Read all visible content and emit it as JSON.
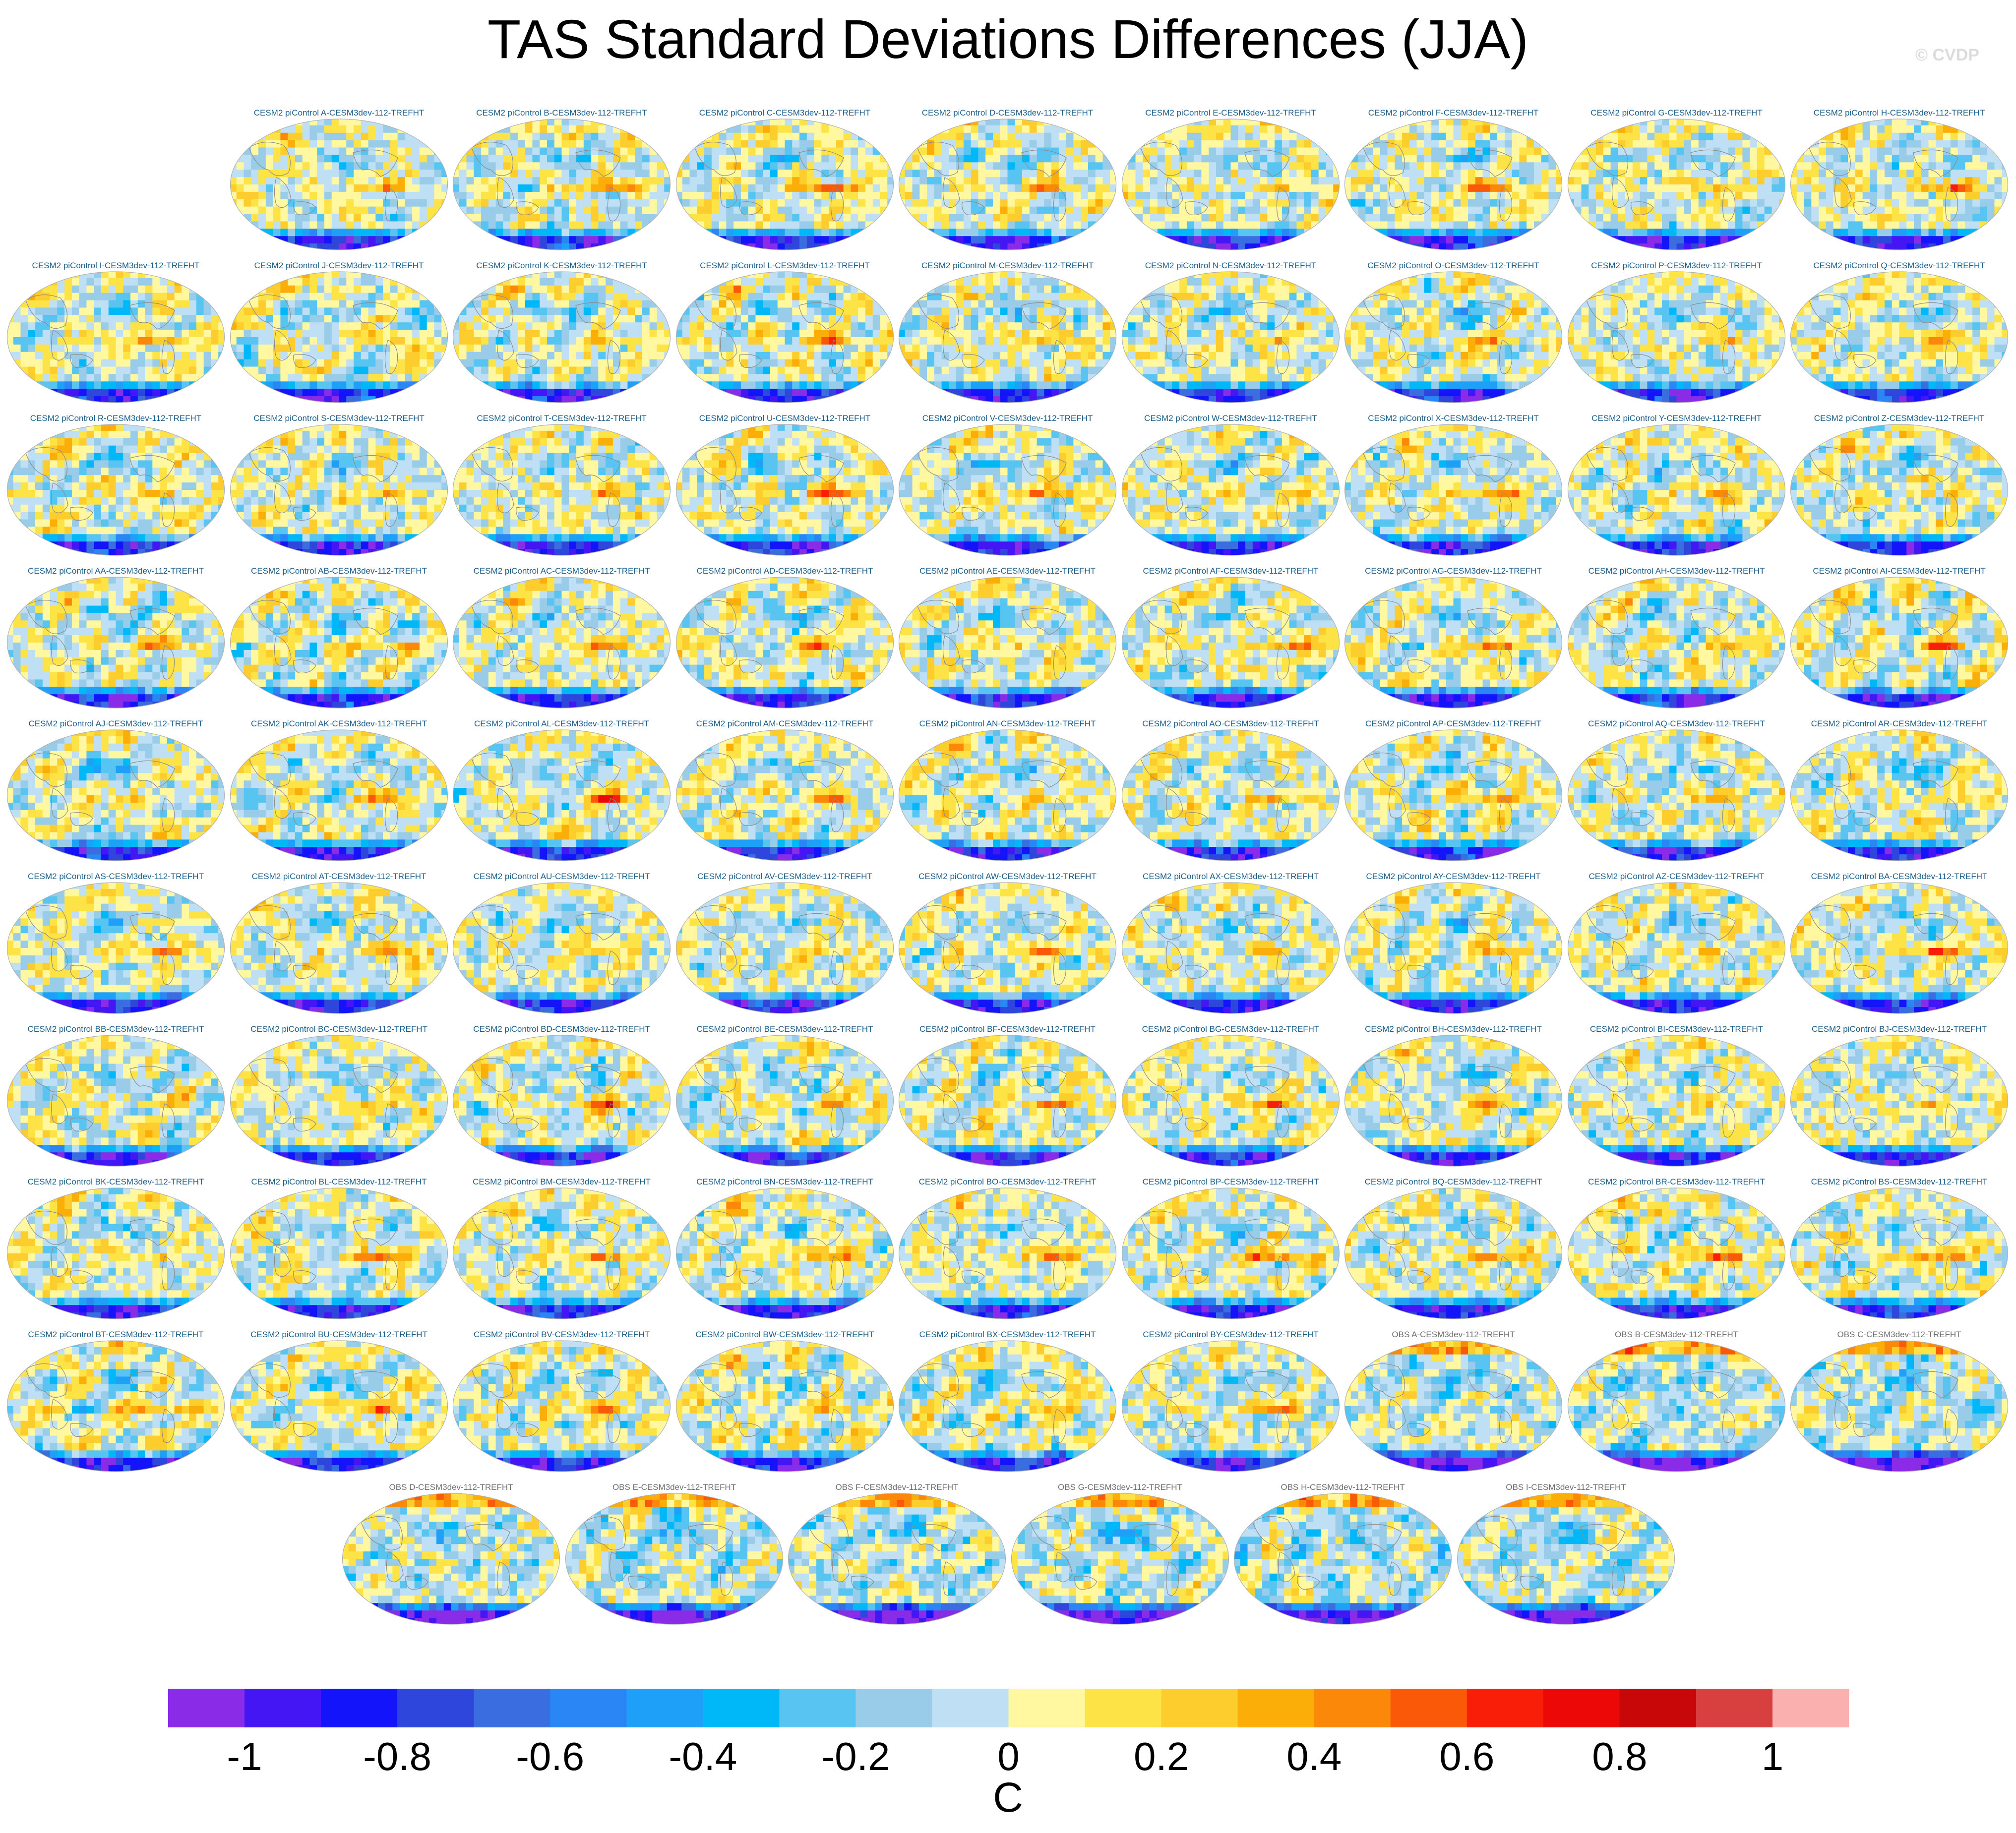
{
  "title": "TAS Standard Deviations Differences (JJA)",
  "copyright": "© CVDP",
  "units": "C",
  "colors": {
    "panel_title_model": "#1b5e8a",
    "panel_title_obs": "#6e6e6e",
    "land_outline": "#8c8c8c",
    "map_border": "#b0b0b0"
  },
  "chart_data": {
    "type": "heatmap",
    "projection": "Robinson, centered on the Pacific",
    "variable": "TAS",
    "season": "JJA",
    "units": "C",
    "panels": [
      {
        "title": "CESM2 piControl A-CESM3dev-112-TREFHT",
        "source": "model"
      },
      {
        "title": "CESM2 piControl B-CESM3dev-112-TREFHT",
        "source": "model"
      },
      {
        "title": "CESM2 piControl C-CESM3dev-112-TREFHT",
        "source": "model"
      },
      {
        "title": "CESM2 piControl D-CESM3dev-112-TREFHT",
        "source": "model"
      },
      {
        "title": "CESM2 piControl E-CESM3dev-112-TREFHT",
        "source": "model"
      },
      {
        "title": "CESM2 piControl F-CESM3dev-112-TREFHT",
        "source": "model"
      },
      {
        "title": "CESM2 piControl G-CESM3dev-112-TREFHT",
        "source": "model"
      },
      {
        "title": "CESM2 piControl H-CESM3dev-112-TREFHT",
        "source": "model"
      },
      {
        "title": "CESM2 piControl I-CESM3dev-112-TREFHT",
        "source": "model"
      },
      {
        "title": "CESM2 piControl J-CESM3dev-112-TREFHT",
        "source": "model"
      },
      {
        "title": "CESM2 piControl K-CESM3dev-112-TREFHT",
        "source": "model"
      },
      {
        "title": "CESM2 piControl L-CESM3dev-112-TREFHT",
        "source": "model"
      },
      {
        "title": "CESM2 piControl M-CESM3dev-112-TREFHT",
        "source": "model"
      },
      {
        "title": "CESM2 piControl N-CESM3dev-112-TREFHT",
        "source": "model"
      },
      {
        "title": "CESM2 piControl O-CESM3dev-112-TREFHT",
        "source": "model"
      },
      {
        "title": "CESM2 piControl P-CESM3dev-112-TREFHT",
        "source": "model"
      },
      {
        "title": "CESM2 piControl Q-CESM3dev-112-TREFHT",
        "source": "model"
      },
      {
        "title": "CESM2 piControl R-CESM3dev-112-TREFHT",
        "source": "model"
      },
      {
        "title": "CESM2 piControl S-CESM3dev-112-TREFHT",
        "source": "model"
      },
      {
        "title": "CESM2 piControl T-CESM3dev-112-TREFHT",
        "source": "model"
      },
      {
        "title": "CESM2 piControl U-CESM3dev-112-TREFHT",
        "source": "model"
      },
      {
        "title": "CESM2 piControl V-CESM3dev-112-TREFHT",
        "source": "model"
      },
      {
        "title": "CESM2 piControl W-CESM3dev-112-TREFHT",
        "source": "model"
      },
      {
        "title": "CESM2 piControl X-CESM3dev-112-TREFHT",
        "source": "model"
      },
      {
        "title": "CESM2 piControl Y-CESM3dev-112-TREFHT",
        "source": "model"
      },
      {
        "title": "CESM2 piControl Z-CESM3dev-112-TREFHT",
        "source": "model"
      },
      {
        "title": "CESM2 piControl AA-CESM3dev-112-TREFHT",
        "source": "model"
      },
      {
        "title": "CESM2 piControl AB-CESM3dev-112-TREFHT",
        "source": "model"
      },
      {
        "title": "CESM2 piControl AC-CESM3dev-112-TREFHT",
        "source": "model"
      },
      {
        "title": "CESM2 piControl AD-CESM3dev-112-TREFHT",
        "source": "model"
      },
      {
        "title": "CESM2 piControl AE-CESM3dev-112-TREFHT",
        "source": "model"
      },
      {
        "title": "CESM2 piControl AF-CESM3dev-112-TREFHT",
        "source": "model"
      },
      {
        "title": "CESM2 piControl AG-CESM3dev-112-TREFHT",
        "source": "model"
      },
      {
        "title": "CESM2 piControl AH-CESM3dev-112-TREFHT",
        "source": "model"
      },
      {
        "title": "CESM2 piControl AI-CESM3dev-112-TREFHT",
        "source": "model"
      },
      {
        "title": "CESM2 piControl AJ-CESM3dev-112-TREFHT",
        "source": "model"
      },
      {
        "title": "CESM2 piControl AK-CESM3dev-112-TREFHT",
        "source": "model"
      },
      {
        "title": "CESM2 piControl AL-CESM3dev-112-TREFHT",
        "source": "model"
      },
      {
        "title": "CESM2 piControl AM-CESM3dev-112-TREFHT",
        "source": "model"
      },
      {
        "title": "CESM2 piControl AN-CESM3dev-112-TREFHT",
        "source": "model"
      },
      {
        "title": "CESM2 piControl AO-CESM3dev-112-TREFHT",
        "source": "model"
      },
      {
        "title": "CESM2 piControl AP-CESM3dev-112-TREFHT",
        "source": "model"
      },
      {
        "title": "CESM2 piControl AQ-CESM3dev-112-TREFHT",
        "source": "model"
      },
      {
        "title": "CESM2 piControl AR-CESM3dev-112-TREFHT",
        "source": "model"
      },
      {
        "title": "CESM2 piControl AS-CESM3dev-112-TREFHT",
        "source": "model"
      },
      {
        "title": "CESM2 piControl AT-CESM3dev-112-TREFHT",
        "source": "model"
      },
      {
        "title": "CESM2 piControl AU-CESM3dev-112-TREFHT",
        "source": "model"
      },
      {
        "title": "CESM2 piControl AV-CESM3dev-112-TREFHT",
        "source": "model"
      },
      {
        "title": "CESM2 piControl AW-CESM3dev-112-TREFHT",
        "source": "model"
      },
      {
        "title": "CESM2 piControl AX-CESM3dev-112-TREFHT",
        "source": "model"
      },
      {
        "title": "CESM2 piControl AY-CESM3dev-112-TREFHT",
        "source": "model"
      },
      {
        "title": "CESM2 piControl AZ-CESM3dev-112-TREFHT",
        "source": "model"
      },
      {
        "title": "CESM2 piControl BA-CESM3dev-112-TREFHT",
        "source": "model"
      },
      {
        "title": "CESM2 piControl BB-CESM3dev-112-TREFHT",
        "source": "model"
      },
      {
        "title": "CESM2 piControl BC-CESM3dev-112-TREFHT",
        "source": "model"
      },
      {
        "title": "CESM2 piControl BD-CESM3dev-112-TREFHT",
        "source": "model"
      },
      {
        "title": "CESM2 piControl BE-CESM3dev-112-TREFHT",
        "source": "model"
      },
      {
        "title": "CESM2 piControl BF-CESM3dev-112-TREFHT",
        "source": "model"
      },
      {
        "title": "CESM2 piControl BG-CESM3dev-112-TREFHT",
        "source": "model"
      },
      {
        "title": "CESM2 piControl BH-CESM3dev-112-TREFHT",
        "source": "model"
      },
      {
        "title": "CESM2 piControl BI-CESM3dev-112-TREFHT",
        "source": "model"
      },
      {
        "title": "CESM2 piControl BJ-CESM3dev-112-TREFHT",
        "source": "model"
      },
      {
        "title": "CESM2 piControl BK-CESM3dev-112-TREFHT",
        "source": "model"
      },
      {
        "title": "CESM2 piControl BL-CESM3dev-112-TREFHT",
        "source": "model"
      },
      {
        "title": "CESM2 piControl BM-CESM3dev-112-TREFHT",
        "source": "model"
      },
      {
        "title": "CESM2 piControl BN-CESM3dev-112-TREFHT",
        "source": "model"
      },
      {
        "title": "CESM2 piControl BO-CESM3dev-112-TREFHT",
        "source": "model"
      },
      {
        "title": "CESM2 piControl BP-CESM3dev-112-TREFHT",
        "source": "model"
      },
      {
        "title": "CESM2 piControl BQ-CESM3dev-112-TREFHT",
        "source": "model"
      },
      {
        "title": "CESM2 piControl BR-CESM3dev-112-TREFHT",
        "source": "model"
      },
      {
        "title": "CESM2 piControl BS-CESM3dev-112-TREFHT",
        "source": "model"
      },
      {
        "title": "CESM2 piControl BT-CESM3dev-112-TREFHT",
        "source": "model"
      },
      {
        "title": "CESM2 piControl BU-CESM3dev-112-TREFHT",
        "source": "model"
      },
      {
        "title": "CESM2 piControl BV-CESM3dev-112-TREFHT",
        "source": "model"
      },
      {
        "title": "CESM2 piControl BW-CESM3dev-112-TREFHT",
        "source": "model"
      },
      {
        "title": "CESM2 piControl BX-CESM3dev-112-TREFHT",
        "source": "model"
      },
      {
        "title": "CESM2 piControl BY-CESM3dev-112-TREFHT",
        "source": "model"
      },
      {
        "title": "OBS A-CESM3dev-112-TREFHT",
        "source": "obs"
      },
      {
        "title": "OBS B-CESM3dev-112-TREFHT",
        "source": "obs"
      },
      {
        "title": "OBS C-CESM3dev-112-TREFHT",
        "source": "obs"
      },
      {
        "title": "OBS D-CESM3dev-112-TREFHT",
        "source": "obs"
      },
      {
        "title": "OBS E-CESM3dev-112-TREFHT",
        "source": "obs"
      },
      {
        "title": "OBS F-CESM3dev-112-TREFHT",
        "source": "obs"
      },
      {
        "title": "OBS G-CESM3dev-112-TREFHT",
        "source": "obs"
      },
      {
        "title": "OBS H-CESM3dev-112-TREFHT",
        "source": "obs"
      },
      {
        "title": "OBS I-CESM3dev-112-TREFHT",
        "source": "obs"
      }
    ],
    "colorbar": {
      "levels": [
        -1.1,
        -1.0,
        -0.9,
        -0.8,
        -0.7,
        -0.6,
        -0.5,
        -0.4,
        -0.3,
        -0.2,
        -0.1,
        0,
        0.1,
        0.2,
        0.3,
        0.4,
        0.5,
        0.6,
        0.7,
        0.8,
        0.9,
        1.0,
        1.1
      ],
      "colors": [
        "#8a2be8",
        "#4516f4",
        "#1414fa",
        "#2f46dc",
        "#3a6ee0",
        "#2a86f4",
        "#1ea0f8",
        "#00b8f8",
        "#58c4f2",
        "#98cce8",
        "#bfe0f4",
        "#fff8a0",
        "#fde345",
        "#fccd2c",
        "#fbad08",
        "#fb8808",
        "#fa5a08",
        "#f91e08",
        "#ed0808",
        "#c80808",
        "#d84040",
        "#fbb0b0"
      ],
      "tick_values": [
        -1,
        -0.8,
        -0.6,
        -0.4,
        -0.2,
        0,
        0.2,
        0.4,
        0.6,
        0.8,
        1
      ],
      "tick_labels": [
        "-1",
        "-0.8",
        "-0.6",
        "-0.4",
        "-0.2",
        "0",
        "0.2",
        "0.4",
        "0.6",
        "0.8",
        "1"
      ],
      "orientation": "horizontal",
      "placement": "bottom"
    }
  }
}
